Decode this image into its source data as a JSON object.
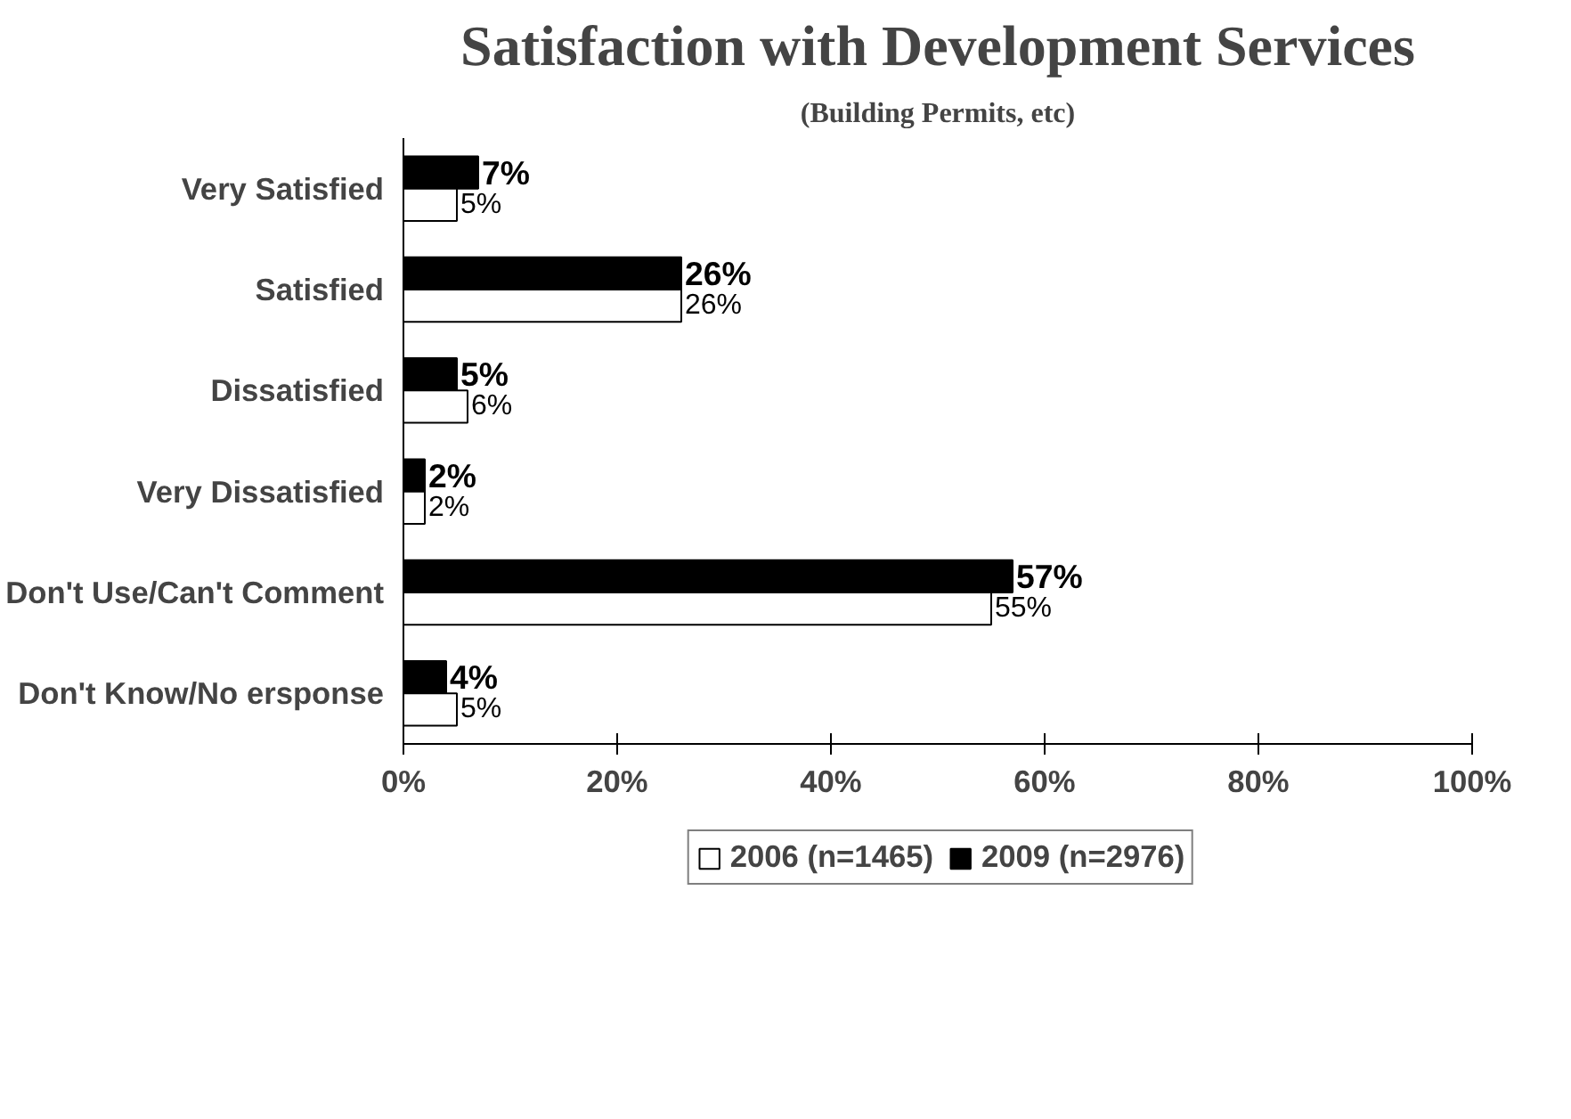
{
  "chart_data": {
    "type": "bar",
    "orientation": "horizontal",
    "title": "Satisfaction with Development Services",
    "subtitle": "(Building Permits, etc)",
    "categories": [
      "Very Satisfied",
      "Satisfied",
      "Dissatisfied",
      "Very Dissatisfied",
      "Don't Use/Can't Comment",
      "Don't Know/No ersponse"
    ],
    "series": [
      {
        "name": "2009 (n=2976)",
        "color": "#000000",
        "values": [
          7,
          26,
          5,
          2,
          57,
          4
        ],
        "value_labels": [
          "7%",
          "26%",
          "5%",
          "2%",
          "57%",
          "4%"
        ]
      },
      {
        "name": "2006 (n=1465)",
        "color": "#ffffff",
        "values": [
          5,
          26,
          6,
          2,
          55,
          5
        ],
        "value_labels": [
          "5%",
          "26%",
          "6%",
          "2%",
          "55%",
          "5%"
        ]
      }
    ],
    "xlim": [
      0,
      100
    ],
    "xticks": [
      {
        "value": 0,
        "label": "0%"
      },
      {
        "value": 20,
        "label": "20%"
      },
      {
        "value": 40,
        "label": "40%"
      },
      {
        "value": 60,
        "label": "60%"
      },
      {
        "value": 80,
        "label": "80%"
      },
      {
        "value": 100,
        "label": "100%"
      }
    ],
    "grid": false,
    "legend": "bottom"
  }
}
